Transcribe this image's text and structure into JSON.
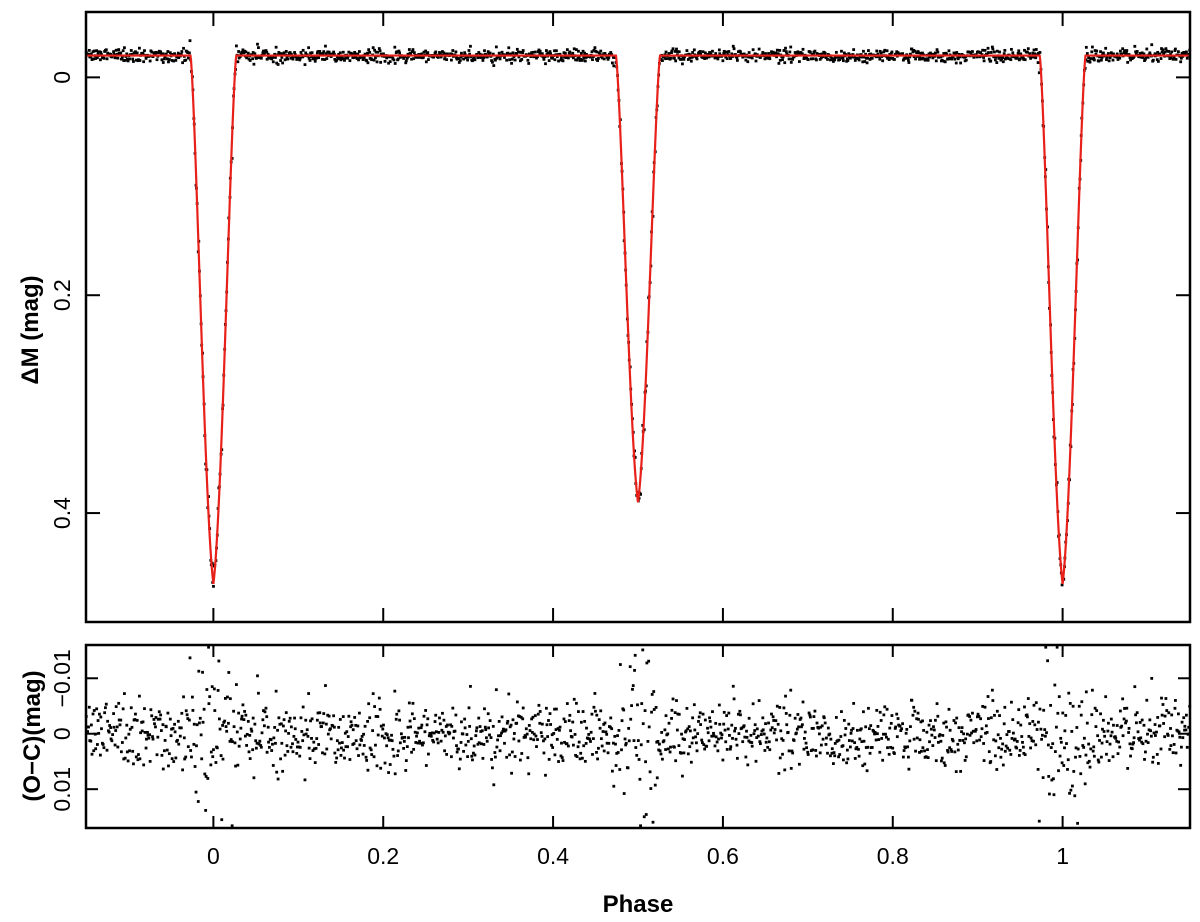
{
  "chart_data": [
    {
      "type": "scatter",
      "panel": "light-curve",
      "xlabel": "",
      "ylabel": "ΔM (mag)",
      "xlim": [
        -0.15,
        1.15
      ],
      "ylim": [
        -0.06,
        0.5
      ],
      "y_inverted": true,
      "x_ticks": [
        0,
        0.2,
        0.4,
        0.6,
        0.8,
        1
      ],
      "y_ticks": [
        0,
        0.2,
        0.4
      ],
      "y_tick_labels": [
        "0",
        "0.2",
        "0.4"
      ],
      "baseline": -0.02,
      "series": [
        {
          "kind": "observed",
          "color": "#000000",
          "description_points": [
            [
              -0.15,
              -0.02
            ],
            [
              -0.03,
              -0.02
            ],
            [
              -0.02,
              0.03
            ],
            [
              -0.01,
              0.19
            ],
            [
              0.0,
              0.465
            ],
            [
              0.01,
              0.19
            ],
            [
              0.02,
              0.03
            ],
            [
              0.03,
              -0.02
            ],
            [
              0.47,
              -0.02
            ],
            [
              0.48,
              0.03
            ],
            [
              0.49,
              0.15
            ],
            [
              0.5,
              0.39
            ],
            [
              0.51,
              0.15
            ],
            [
              0.52,
              0.03
            ],
            [
              0.53,
              -0.02
            ],
            [
              0.97,
              -0.02
            ],
            [
              0.98,
              0.03
            ],
            [
              0.99,
              0.19
            ],
            [
              1.0,
              0.465
            ],
            [
              1.01,
              0.19
            ],
            [
              1.02,
              0.03
            ],
            [
              1.03,
              -0.02
            ],
            [
              1.15,
              -0.02
            ]
          ]
        },
        {
          "kind": "model",
          "color": "#e8201a",
          "eclipses": [
            {
              "center": 0.0,
              "depth": 0.465,
              "half_width": 0.027
            },
            {
              "center": 0.5,
              "depth": 0.39,
              "half_width": 0.026
            },
            {
              "center": 1.0,
              "depth": 0.465,
              "half_width": 0.027
            }
          ]
        }
      ]
    },
    {
      "type": "scatter",
      "panel": "residuals",
      "xlabel": "Phase",
      "ylabel": "(O−C)(mag)",
      "xlim": [
        -0.15,
        1.15
      ],
      "ylim": [
        -0.016,
        0.017
      ],
      "y_inverted": true,
      "x_ticks": [
        0,
        0.2,
        0.4,
        0.6,
        0.8,
        1
      ],
      "x_tick_labels": [
        "0",
        "0.2",
        "0.4",
        "0.6",
        "0.8",
        "1"
      ],
      "y_ticks": [
        -0.01,
        0,
        0.01
      ],
      "y_tick_labels": [
        "−0.01",
        "0",
        "0.01"
      ],
      "residual_scatter": 0.003
    }
  ]
}
